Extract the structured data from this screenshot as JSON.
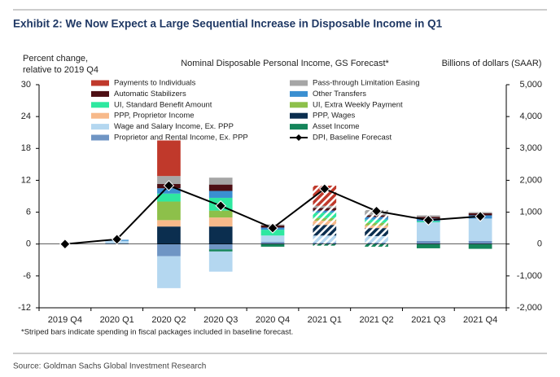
{
  "chart_data": {
    "type": "bar",
    "title": "Exhibit 2: We Now Expect a Large Sequential Increase in Disposable Income in Q1",
    "subtitle": "Nominal Disposable Personal Income, GS Forecast*",
    "y_label": [
      "Percent change,",
      "relative to 2019 Q4"
    ],
    "y2_label": "Billions of dollars (SAAR)",
    "footnote": "*Striped bars indicate spending in fiscal packages included in baseline forecast.",
    "source": "Source: Goldman Sachs Global Investment Research",
    "categories": [
      "2019 Q4",
      "2020 Q1",
      "2020 Q2",
      "2020 Q3",
      "2020 Q4",
      "2021 Q1",
      "2021 Q2",
      "2021 Q3",
      "2021 Q4"
    ],
    "striped": [
      false,
      false,
      false,
      false,
      false,
      true,
      true,
      false,
      false
    ],
    "stacked": true,
    "grid": false,
    "ylim": [
      -12,
      30
    ],
    "yticks": [
      -12,
      -6,
      0,
      6,
      12,
      18,
      24,
      30
    ],
    "y2lim": [
      -2000,
      5000
    ],
    "y2ticks": [
      {
        "value": -2000,
        "label": "-2,000"
      },
      {
        "value": -1000,
        "label": "-1,000"
      },
      0,
      {
        "value": 1000,
        "label": "1,000"
      },
      {
        "value": 2000,
        "label": "2,000"
      },
      {
        "value": 3000,
        "label": "3,000"
      },
      {
        "value": 4000,
        "label": "4,000"
      },
      {
        "value": 5000,
        "label": "5,000"
      }
    ],
    "series": [
      {
        "name": "Payments to Individuals",
        "color": "#c0392b",
        "values": [
          0,
          0,
          6.7,
          0,
          0,
          3.8,
          0,
          0,
          0
        ]
      },
      {
        "name": "Pass-through Limitation Easing",
        "color": "#a6a6a6",
        "values": [
          0,
          0,
          1.5,
          1.3,
          0.2,
          0.4,
          1.0,
          0.3,
          0.2
        ]
      },
      {
        "name": "Automatic Stabilizers",
        "color": "#4d0f14",
        "values": [
          0,
          0,
          0.8,
          1.2,
          0.4,
          0.5,
          0.3,
          0.3,
          0.4
        ]
      },
      {
        "name": "Other Transfers",
        "color": "#3a8fd1",
        "values": [
          0,
          0.2,
          1.0,
          1.3,
          0.4,
          0.4,
          0.5,
          0.5,
          0.6
        ]
      },
      {
        "name": "UI, Standard Benefit Amount",
        "color": "#2ee8a0",
        "values": [
          0,
          0,
          1.5,
          2.4,
          1.1,
          1.0,
          0.6,
          0.2,
          0
        ]
      },
      {
        "name": "UI, Extra Weekly Payment",
        "color": "#8dc04a",
        "values": [
          0,
          0,
          3.5,
          1.3,
          0,
          0.5,
          0.5,
          0,
          0
        ]
      },
      {
        "name": "PPP, Proprietor Income",
        "color": "#f7b98a",
        "values": [
          0,
          0,
          1.2,
          1.7,
          0,
          0.8,
          0.5,
          0,
          0
        ]
      },
      {
        "name": "PPP, Wages",
        "color": "#0b2e4f",
        "values": [
          0,
          0,
          3.3,
          3.3,
          0,
          2.0,
          1.5,
          0,
          0
        ]
      },
      {
        "name": "Wage and Salary Income, Ex. PPP",
        "color": "#b4d7f0",
        "values": [
          0,
          0.5,
          -6.0,
          -3.8,
          1.2,
          1.3,
          1.2,
          3.5,
          4.2
        ]
      },
      {
        "name": "Asset Income",
        "color": "#14855a",
        "values": [
          0,
          0,
          0,
          -0.4,
          -0.5,
          -0.3,
          -0.5,
          -0.8,
          -0.9
        ]
      },
      {
        "name": "Proprietor and Rental Income, Ex. PPP",
        "color": "#6f95c4",
        "values": [
          0,
          0.1,
          -2.3,
          -1.0,
          0.4,
          0.3,
          0.3,
          0.6,
          0.6
        ]
      },
      {
        "name": "DPI, Baseline Forecast",
        "type": "line",
        "color": "#000000",
        "values": [
          0,
          0.9,
          11.0,
          7.2,
          3.0,
          10.4,
          6.2,
          4.5,
          5.2
        ]
      }
    ]
  }
}
